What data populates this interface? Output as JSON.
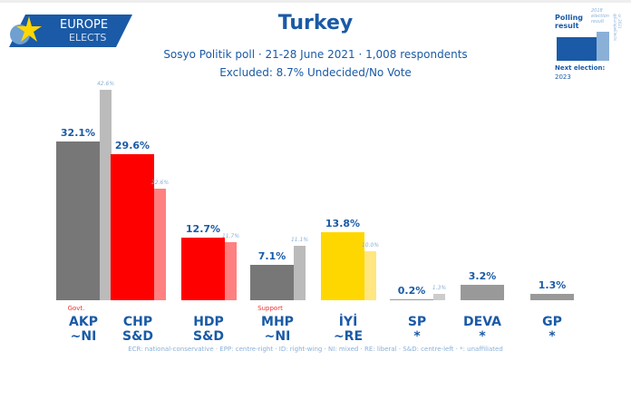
{
  "logo": {
    "line1": "EUROPE",
    "line2": "ELECTS"
  },
  "chart_data": {
    "type": "bar",
    "title": "Turkey",
    "subtitle": "Sosyo Politik poll · 21-28 June 2021 · 1,008 respondents",
    "excluded": "Excluded: 8.7% Undecided/No Vote",
    "categories": [
      "AKP",
      "CHP",
      "HDP",
      "MHP",
      "İYİ",
      "SP",
      "DEVA",
      "GP"
    ],
    "groups": [
      "~NI",
      "S&D",
      "S&D",
      "~NI",
      "~RE",
      "*",
      "*",
      "*"
    ],
    "tags": [
      "Govt.",
      "",
      "",
      "Support",
      "",
      "",
      "",
      ""
    ],
    "series": [
      {
        "name": "Polling result",
        "values": [
          32.1,
          29.6,
          12.7,
          7.1,
          13.8,
          0.2,
          3.2,
          1.3
        ],
        "labels": [
          "32.1%",
          "29.6%",
          "12.7%",
          "7.1%",
          "13.8%",
          "0.2%",
          "3.2%",
          "1.3%"
        ]
      },
      {
        "name": "2018 election result",
        "values": [
          42.6,
          22.6,
          11.7,
          11.1,
          10.0,
          1.3,
          null,
          null
        ],
        "labels": [
          "42.6%",
          "22.6%",
          "11.7%",
          "11.1%",
          "10.0%",
          "1.3%",
          "",
          ""
        ]
      }
    ],
    "colors": [
      "#777777",
      "#ff0000",
      "#ff0000",
      "#777777",
      "#ffd700",
      "#999999",
      "#999999",
      "#999999"
    ],
    "prev_colors": [
      "#bbbbbb",
      "#ff8080",
      "#ff8080",
      "#bbbbbb",
      "#ffe680",
      "#cccccc",
      "#cccccc",
      "#cccccc"
    ],
    "ylim": [
      0,
      45
    ],
    "legend": {
      "polling": "Polling result",
      "previous": "2018 election result",
      "next_election_label": "Next election:",
      "next_election_year": "2023",
      "copyright": "© 2021 @EuropeElects"
    },
    "footnote": "ECR: national-conservative · EPP: centre-right · ID: right-wing · NI: mixed · RE: liberal · S&D: centre-left · *: unaffiliated"
  }
}
